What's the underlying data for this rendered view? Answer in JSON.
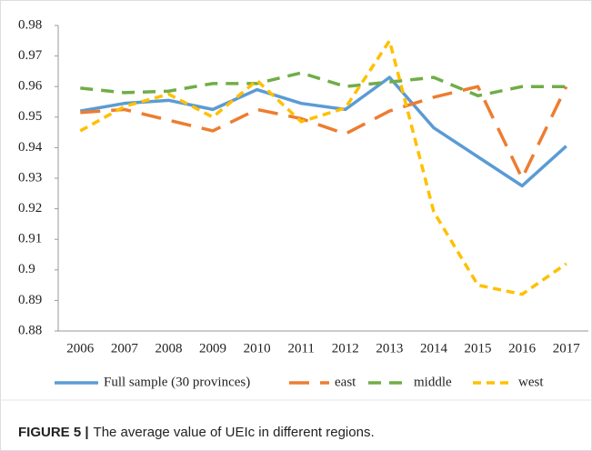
{
  "chart_data": {
    "type": "line",
    "categories": [
      "2006",
      "2007",
      "2008",
      "2009",
      "2010",
      "2011",
      "2012",
      "2013",
      "2014",
      "2015",
      "2016",
      "2017"
    ],
    "series": [
      {
        "name": "Full sample (30 provinces)",
        "color": "#5b9bd5",
        "dash": "solid",
        "values": [
          0.952,
          0.9545,
          0.9555,
          0.9525,
          0.959,
          0.9545,
          0.9525,
          0.963,
          0.9465,
          0.937,
          0.9275,
          0.9405
        ]
      },
      {
        "name": "east",
        "color": "#ed7d31",
        "dash": "long-dash",
        "values": [
          0.9515,
          0.9525,
          0.949,
          0.9455,
          0.9525,
          0.9495,
          0.9445,
          0.952,
          0.9565,
          0.96,
          0.93,
          0.96
        ]
      },
      {
        "name": "middle",
        "color": "#70ad47",
        "dash": "dash",
        "values": [
          0.9595,
          0.958,
          0.9585,
          0.961,
          0.961,
          0.9645,
          0.96,
          0.9615,
          0.963,
          0.957,
          0.96,
          0.96
        ]
      },
      {
        "name": "west",
        "color": "#ffc000",
        "dash": "short-dash",
        "values": [
          0.9455,
          0.9535,
          0.9575,
          0.95,
          0.962,
          0.9485,
          0.953,
          0.975,
          0.919,
          0.895,
          0.892,
          0.902
        ]
      }
    ],
    "ylim": [
      0.88,
      0.98
    ],
    "yticks": [
      0.88,
      0.89,
      0.9,
      0.91,
      0.92,
      0.93,
      0.94,
      0.95,
      0.96,
      0.97,
      0.98
    ],
    "grid": false,
    "legend": "bottom"
  },
  "caption": {
    "label": "FIGURE 5 |",
    "text": "The average value of UEIc in different regions."
  }
}
